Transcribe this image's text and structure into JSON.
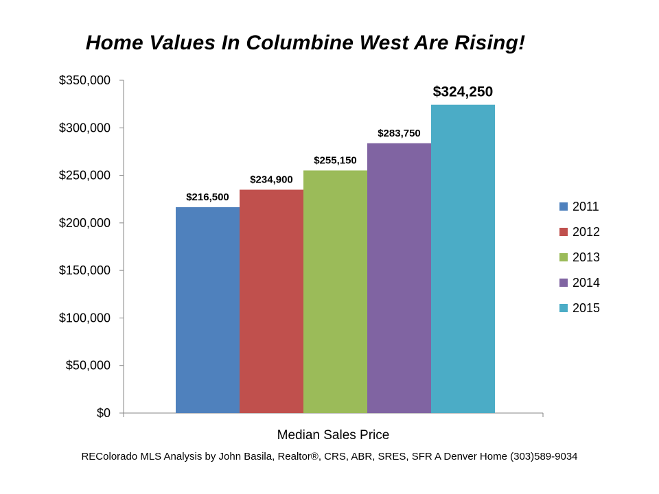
{
  "chart_data": {
    "type": "bar",
    "title": "Home Values In Columbine West Are Rising!",
    "categories": [
      "Median Sales Price"
    ],
    "series": [
      {
        "name": "2011",
        "values": [
          216500
        ],
        "label": "$216,500",
        "color": "#4F81BD"
      },
      {
        "name": "2012",
        "values": [
          234900
        ],
        "label": "$234,900",
        "color": "#C0504D"
      },
      {
        "name": "2013",
        "values": [
          255150
        ],
        "label": "$255,150",
        "color": "#9BBB59"
      },
      {
        "name": "2014",
        "values": [
          283750
        ],
        "label": "$283,750",
        "color": "#8064A2"
      },
      {
        "name": "2015",
        "values": [
          324250
        ],
        "label": "$324,250",
        "color": "#4BACC6"
      }
    ],
    "ylim": [
      0,
      350000
    ],
    "ytick_values": [
      0,
      50000,
      100000,
      150000,
      200000,
      250000,
      300000,
      350000
    ],
    "ytick_labels": [
      "$0",
      "$50,000",
      "$100,000",
      "$150,000",
      "$200,000",
      "$250,000",
      "$300,000",
      "$350,000"
    ],
    "xlabel": "",
    "ylabel": "",
    "grid": false,
    "legend_position": "right"
  },
  "footer": {
    "credit": "REColorado MLS  Analysis by John Basila,  Realtor®, CRS, ABR, SRES, SFR    A Denver Home    (303)589-9034"
  }
}
